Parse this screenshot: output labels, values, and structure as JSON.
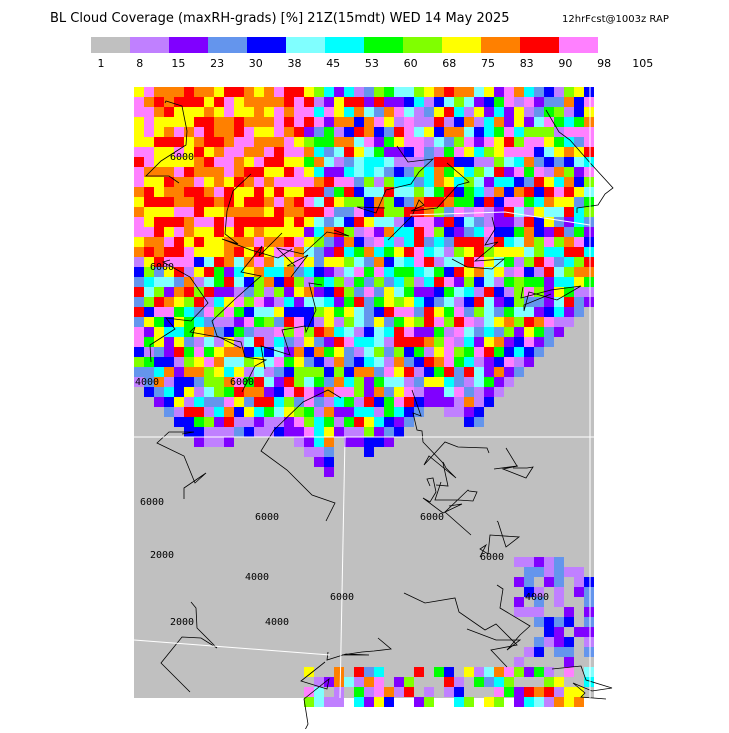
{
  "header": {
    "title": "BL Cloud Coverage (maxRH-grads) [%] 21Z(15mdt) WED 14 May 2025",
    "subtitle": "12hrFcst@1003z RAP"
  },
  "legend": {
    "colors": [
      "#c0c0c0",
      "#c080ff",
      "#8000ff",
      "#6495ed",
      "#0000ff",
      "#80ffff",
      "#00ffff",
      "#00ff00",
      "#80ff00",
      "#ffff00",
      "#ff8000",
      "#ff0000",
      "#ff80ff"
    ],
    "ticks": [
      1,
      8,
      15,
      23,
      30,
      38,
      45,
      53,
      60,
      68,
      75,
      83,
      90,
      98,
      105
    ]
  },
  "map": {
    "contour_labels": [
      "6000",
      "6000",
      "6000",
      "4000",
      "6000",
      "6000",
      "2000",
      "4000",
      "2000",
      "4000",
      "6000",
      "6000",
      "6000",
      "4000"
    ]
  }
}
